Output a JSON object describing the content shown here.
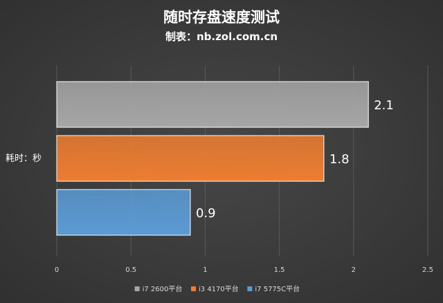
{
  "chart_data": {
    "type": "bar",
    "orientation": "horizontal",
    "title": "随时存盘速度测试",
    "subtitle": "制表：nb.zol.com.cn",
    "ylabel": "耗时：秒",
    "xlim": [
      0,
      2.5
    ],
    "xticks": [
      "0",
      "0.5",
      "1",
      "1.5",
      "2",
      "2.5"
    ],
    "grid": true,
    "legend_position": "bottom",
    "series": [
      {
        "name": "i7 2600平台",
        "value": 2.1,
        "label": "2.1",
        "color": "#a6a6a6"
      },
      {
        "name": "i3 4170平台",
        "value": 1.8,
        "label": "1.8",
        "color": "#ed7d31"
      },
      {
        "name": "i7 5775C平台",
        "value": 0.9,
        "label": "0.9",
        "color": "#5b9bd5"
      }
    ]
  }
}
